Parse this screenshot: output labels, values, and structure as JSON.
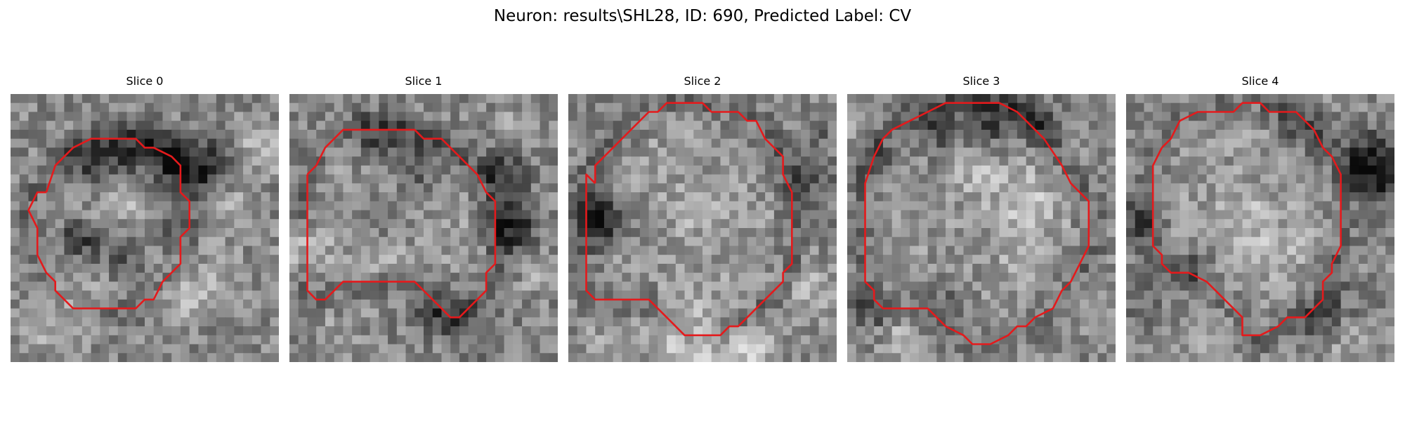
{
  "figure": {
    "title": "Neuron: results\\SHL28, ID: 690, Predicted Label: CV",
    "colormap": "gray",
    "outline_color": "#e41a1c",
    "slices": [
      {
        "title": "Slice 0",
        "grid_size": 30,
        "contour": [
          [
            4,
            11
          ],
          [
            5,
            8
          ],
          [
            7,
            6
          ],
          [
            9,
            5
          ],
          [
            12,
            5
          ],
          [
            14,
            5
          ],
          [
            15,
            6
          ],
          [
            16,
            6
          ],
          [
            18,
            7
          ],
          [
            19,
            8
          ],
          [
            19,
            10
          ],
          [
            19,
            11
          ],
          [
            20,
            12
          ],
          [
            20,
            15
          ],
          [
            19,
            16
          ],
          [
            19,
            19
          ],
          [
            17,
            21
          ],
          [
            16,
            23
          ],
          [
            15,
            23
          ],
          [
            14,
            24
          ],
          [
            12,
            24
          ],
          [
            8,
            24
          ],
          [
            7,
            24
          ],
          [
            5,
            22
          ],
          [
            5,
            21
          ],
          [
            4,
            20
          ],
          [
            3,
            18
          ],
          [
            3,
            15
          ],
          [
            2,
            13
          ],
          [
            3,
            11
          ],
          [
            4,
            11
          ]
        ],
        "dark_spots": [
          [
            8,
            8,
            2.5,
            -70
          ],
          [
            11,
            6,
            2.5,
            -50
          ],
          [
            15,
            6,
            2.5,
            -70
          ],
          [
            18,
            8,
            3,
            -80
          ],
          [
            22,
            8,
            3,
            -90
          ],
          [
            17,
            15,
            2.5,
            -40
          ],
          [
            9,
            17,
            2.5,
            -40
          ],
          [
            7,
            16,
            2,
            -80
          ],
          [
            13,
            19,
            2.5,
            -60
          ],
          [
            12,
            8,
            2,
            -40
          ]
        ],
        "bright_spots": [
          [
            28,
            6,
            2.5,
            60
          ],
          [
            25,
            13,
            2.5,
            50
          ],
          [
            19,
            23,
            2,
            60
          ],
          [
            7,
            24,
            3,
            30
          ],
          [
            4,
            26,
            3,
            30
          ],
          [
            13,
            12,
            2,
            25
          ],
          [
            23,
            21,
            3,
            40
          ]
        ],
        "seed": 11
      },
      {
        "title": "Slice 1",
        "grid_size": 30,
        "contour": [
          [
            2,
            9
          ],
          [
            3,
            8
          ],
          [
            4,
            6
          ],
          [
            6,
            4
          ],
          [
            8,
            4
          ],
          [
            14,
            4
          ],
          [
            15,
            5
          ],
          [
            17,
            5
          ],
          [
            18,
            6
          ],
          [
            19,
            7
          ],
          [
            20,
            8
          ],
          [
            21,
            9
          ],
          [
            22,
            11
          ],
          [
            23,
            12
          ],
          [
            23,
            16
          ],
          [
            23,
            19
          ],
          [
            22,
            20
          ],
          [
            22,
            22
          ],
          [
            19,
            25
          ],
          [
            18,
            25
          ],
          [
            17,
            24
          ],
          [
            14,
            21
          ],
          [
            6,
            21
          ],
          [
            4,
            23
          ],
          [
            3,
            23
          ],
          [
            2,
            22
          ],
          [
            2,
            19
          ],
          [
            2,
            11
          ],
          [
            2,
            9
          ]
        ],
        "dark_spots": [
          [
            10,
            5,
            3,
            -60
          ],
          [
            15,
            6,
            2.5,
            -60
          ],
          [
            24,
            9,
            2.5,
            -90
          ],
          [
            25,
            15,
            2.5,
            -100
          ],
          [
            11,
            14,
            2.5,
            -40
          ],
          [
            17,
            24,
            3,
            -60
          ],
          [
            22,
            27,
            2.5,
            -40
          ],
          [
            14,
            10,
            2,
            -40
          ]
        ],
        "bright_spots": [
          [
            1,
            17,
            2.5,
            70
          ],
          [
            28,
            20,
            2,
            40
          ],
          [
            26,
            4,
            2.5,
            30
          ],
          [
            10,
            18,
            2.5,
            30
          ],
          [
            6,
            26,
            2.5,
            20
          ]
        ],
        "seed": 23
      },
      {
        "title": "Slice 2",
        "grid_size": 30,
        "contour": [
          [
            3,
            10
          ],
          [
            3,
            8
          ],
          [
            5,
            6
          ],
          [
            7,
            4
          ],
          [
            9,
            2
          ],
          [
            10,
            2
          ],
          [
            11,
            1
          ],
          [
            15,
            1
          ],
          [
            16,
            2
          ],
          [
            19,
            2
          ],
          [
            20,
            3
          ],
          [
            21,
            3
          ],
          [
            22,
            5
          ],
          [
            24,
            7
          ],
          [
            24,
            9
          ],
          [
            25,
            11
          ],
          [
            25,
            19
          ],
          [
            24,
            20
          ],
          [
            24,
            21
          ],
          [
            23,
            22
          ],
          [
            21,
            24
          ],
          [
            20,
            25
          ],
          [
            19,
            26
          ],
          [
            18,
            26
          ],
          [
            17,
            27
          ],
          [
            15,
            27
          ],
          [
            14,
            27
          ],
          [
            13,
            27
          ],
          [
            11,
            25
          ],
          [
            10,
            24
          ],
          [
            9,
            23
          ],
          [
            3,
            23
          ],
          [
            2,
            22
          ],
          [
            2,
            21
          ],
          [
            2,
            9
          ],
          [
            3,
            10
          ]
        ],
        "dark_spots": [
          [
            4,
            14,
            3,
            -90
          ],
          [
            3,
            14,
            2,
            -60
          ],
          [
            27,
            10,
            3,
            -50
          ],
          [
            28,
            4,
            2.5,
            -30
          ]
        ],
        "bright_spots": [
          [
            13,
            28,
            4,
            70
          ],
          [
            20,
            29,
            3,
            60
          ],
          [
            27,
            22,
            3,
            40
          ],
          [
            4,
            28,
            3,
            30
          ],
          [
            14,
            13,
            3,
            20
          ]
        ],
        "seed": 37
      },
      {
        "title": "Slice 3",
        "grid_size": 30,
        "contour": [
          [
            3,
            7
          ],
          [
            4,
            5
          ],
          [
            5,
            4
          ],
          [
            7,
            3
          ],
          [
            9,
            2
          ],
          [
            11,
            1
          ],
          [
            17,
            1
          ],
          [
            19,
            2
          ],
          [
            20,
            3
          ],
          [
            21,
            4
          ],
          [
            22,
            5
          ],
          [
            24,
            8
          ],
          [
            25,
            10
          ],
          [
            27,
            12
          ],
          [
            27,
            17
          ],
          [
            26,
            19
          ],
          [
            25,
            21
          ],
          [
            24,
            22
          ],
          [
            23,
            24
          ],
          [
            21,
            25
          ],
          [
            20,
            26
          ],
          [
            19,
            26
          ],
          [
            18,
            27
          ],
          [
            16,
            28
          ],
          [
            14,
            28
          ],
          [
            13,
            27
          ],
          [
            11,
            26
          ],
          [
            9,
            24
          ],
          [
            8,
            24
          ],
          [
            4,
            24
          ],
          [
            3,
            23
          ],
          [
            3,
            22
          ],
          [
            2,
            21
          ],
          [
            2,
            18
          ],
          [
            2,
            10
          ],
          [
            3,
            7
          ]
        ],
        "dark_spots": [
          [
            10,
            4,
            3,
            -70
          ],
          [
            16,
            3,
            3,
            -80
          ],
          [
            21,
            3,
            2.5,
            -60
          ],
          [
            3,
            7,
            2.5,
            -40
          ],
          [
            3,
            24,
            2.5,
            -50
          ],
          [
            11,
            23,
            3,
            -40
          ]
        ],
        "bright_spots": [
          [
            20,
            12,
            3,
            50
          ],
          [
            15,
            9,
            2.5,
            35
          ],
          [
            1,
            3,
            2.5,
            40
          ],
          [
            28,
            24,
            2.5,
            40
          ],
          [
            6,
            27,
            2.5,
            40
          ],
          [
            20,
            18,
            2.5,
            30
          ]
        ],
        "seed": 53
      },
      {
        "title": "Slice 4",
        "grid_size": 30,
        "contour": [
          [
            4,
            6
          ],
          [
            5,
            5
          ],
          [
            6,
            3
          ],
          [
            8,
            2
          ],
          [
            12,
            2
          ],
          [
            13,
            1
          ],
          [
            15,
            1
          ],
          [
            16,
            2
          ],
          [
            19,
            2
          ],
          [
            21,
            4
          ],
          [
            22,
            6
          ],
          [
            23,
            7
          ],
          [
            24,
            9
          ],
          [
            24,
            12
          ],
          [
            24,
            17
          ],
          [
            23,
            19
          ],
          [
            23,
            20
          ],
          [
            22,
            21
          ],
          [
            22,
            23
          ],
          [
            21,
            24
          ],
          [
            20,
            25
          ],
          [
            18,
            25
          ],
          [
            17,
            26
          ],
          [
            15,
            27
          ],
          [
            13,
            27
          ],
          [
            13,
            26
          ],
          [
            13,
            25
          ],
          [
            12,
            24
          ],
          [
            11,
            23
          ],
          [
            10,
            22
          ],
          [
            9,
            21
          ],
          [
            7,
            20
          ],
          [
            5,
            20
          ],
          [
            4,
            19
          ],
          [
            4,
            18
          ],
          [
            3,
            17
          ],
          [
            3,
            12
          ],
          [
            3,
            8
          ],
          [
            4,
            6
          ]
        ],
        "dark_spots": [
          [
            27,
            7,
            3,
            -90
          ],
          [
            28,
            10,
            2.5,
            -80
          ],
          [
            1,
            14,
            2.5,
            -60
          ],
          [
            19,
            4,
            2.5,
            -60
          ],
          [
            7,
            19,
            2.5,
            -40
          ],
          [
            2,
            23,
            2.5,
            -40
          ],
          [
            22,
            24,
            3,
            -50
          ]
        ],
        "bright_spots": [
          [
            13,
            14,
            3.5,
            35
          ],
          [
            17,
            18,
            3,
            30
          ],
          [
            9,
            27,
            3,
            40
          ],
          [
            25,
            28,
            2.5,
            30
          ],
          [
            5,
            4,
            2.5,
            20
          ]
        ],
        "seed": 71
      }
    ]
  }
}
